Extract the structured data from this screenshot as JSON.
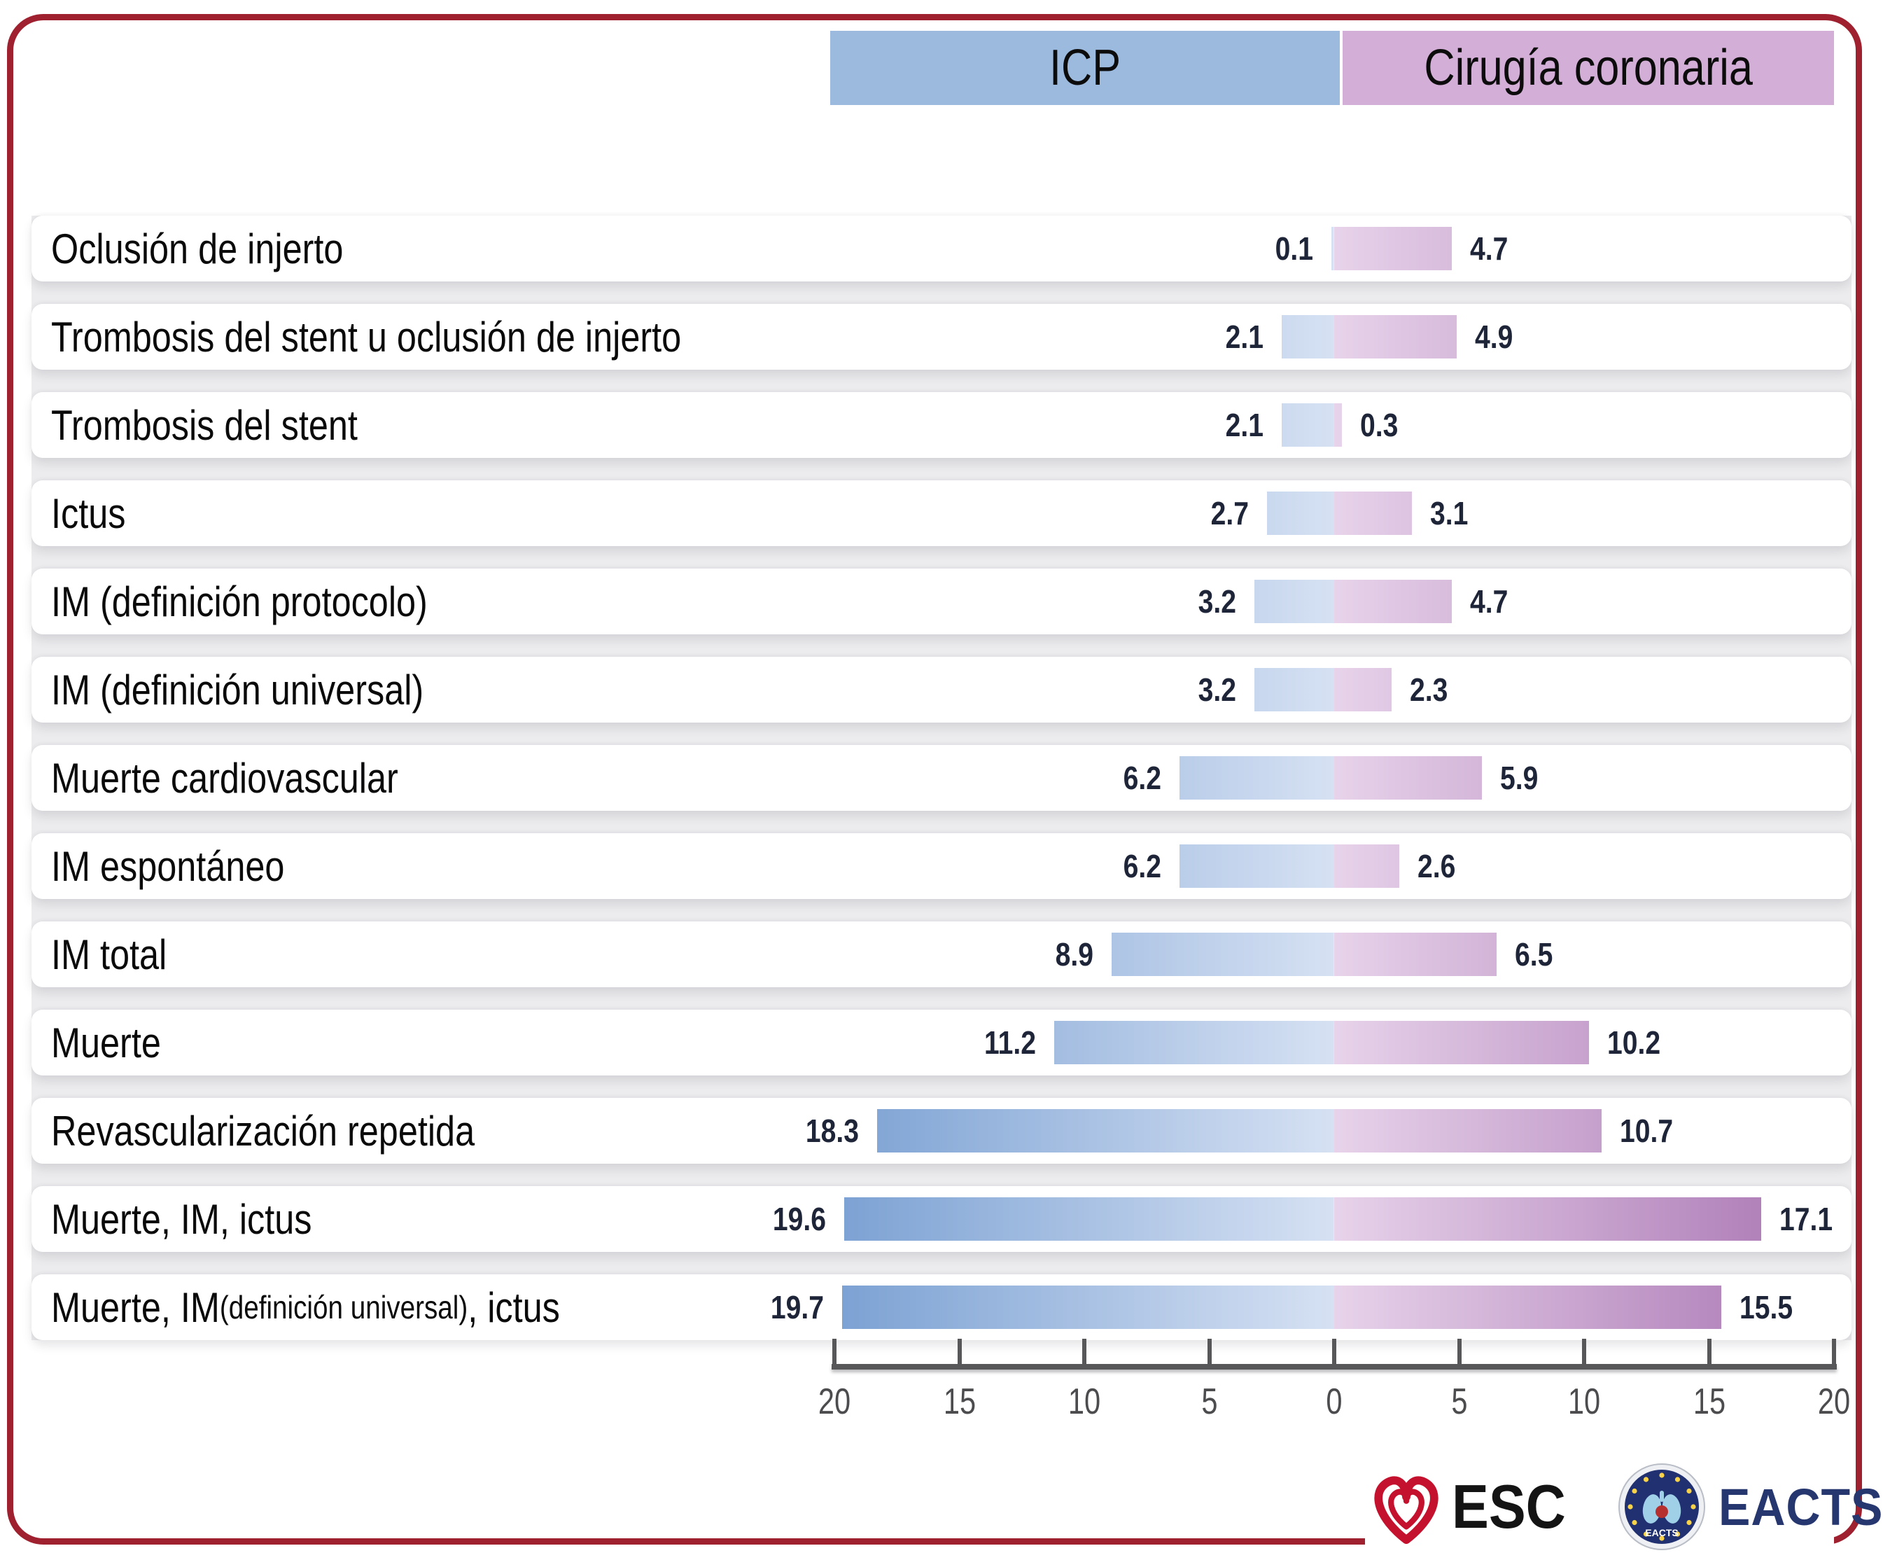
{
  "legend": {
    "icp_label": "ICP",
    "surgery_label": "Cirugía coronaria",
    "icp_color": "#9cbade",
    "surgery_color": "#d3aed6"
  },
  "chart_data": {
    "type": "bar",
    "subtype": "diverging-horizontal-tornado",
    "title": "",
    "legend_position": "top",
    "series_names": [
      "ICP",
      "Cirugía coronaria"
    ],
    "categories": [
      [
        {
          "t": "Oclusión de injerto"
        }
      ],
      [
        {
          "t": "Trombosis del stent u oclusión de injerto"
        }
      ],
      [
        {
          "t": "Trombosis del stent"
        }
      ],
      [
        {
          "t": "Ictus"
        }
      ],
      [
        {
          "t": "IM (definición protocolo)"
        }
      ],
      [
        {
          "t": "IM (definición universal)"
        }
      ],
      [
        {
          "t": "Muerte cardiovascular"
        }
      ],
      [
        {
          "t": "IM espontáneo"
        }
      ],
      [
        {
          "t": "IM total"
        }
      ],
      [
        {
          "t": "Muerte"
        }
      ],
      [
        {
          "t": "Revascularización repetida"
        }
      ],
      [
        {
          "t": "Muerte, IM, ictus"
        }
      ],
      [
        {
          "t": "Muerte, IM "
        },
        {
          "t": "(definición universal)",
          "small": true
        },
        {
          "t": ", ictus"
        }
      ]
    ],
    "series": [
      {
        "name": "ICP",
        "values": [
          0.1,
          2.1,
          2.1,
          2.7,
          3.2,
          3.2,
          6.2,
          6.2,
          8.9,
          11.2,
          18.3,
          19.6,
          19.7
        ]
      },
      {
        "name": "Cirugía coronaria",
        "values": [
          4.7,
          4.9,
          0.3,
          3.1,
          4.7,
          2.3,
          5.9,
          2.6,
          6.5,
          10.2,
          10.7,
          17.1,
          15.5
        ]
      }
    ],
    "axis": {
      "tick_labels": [
        "20",
        "15",
        "10",
        "5",
        "0",
        "5",
        "10",
        "15",
        "20"
      ],
      "max": 20,
      "grid": false
    },
    "colors": {
      "icp_deep": "#7ba1d3",
      "icp_light": "#d6e1f3",
      "surgery_light": "#e7d3ea",
      "surgery_deep": "#a873b2",
      "value_text": "#1e2538",
      "frame": "#9f2130"
    }
  },
  "footer": {
    "esc_label": "ESC",
    "eacts_label": "EACTS",
    "eacts_badge_label": "EACTS"
  }
}
